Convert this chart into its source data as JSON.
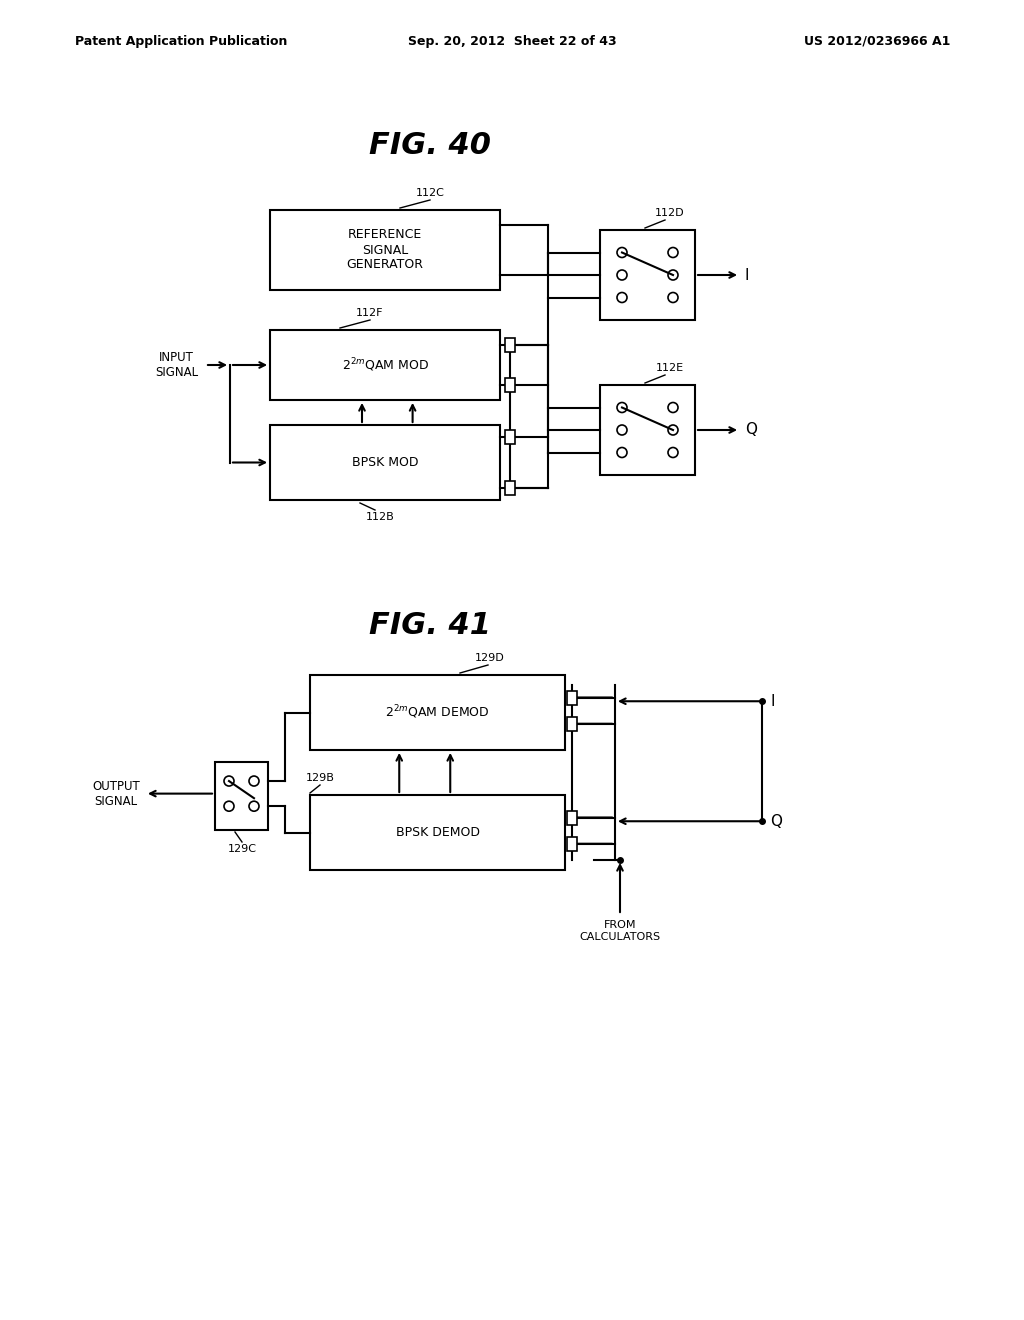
{
  "bg_color": "#ffffff",
  "header_left": "Patent Application Publication",
  "header_center": "Sep. 20, 2012  Sheet 22 of 43",
  "header_right": "US 2012/0236966 A1",
  "fig40_title": "FIG. 40",
  "fig41_title": "FIG. 41"
}
